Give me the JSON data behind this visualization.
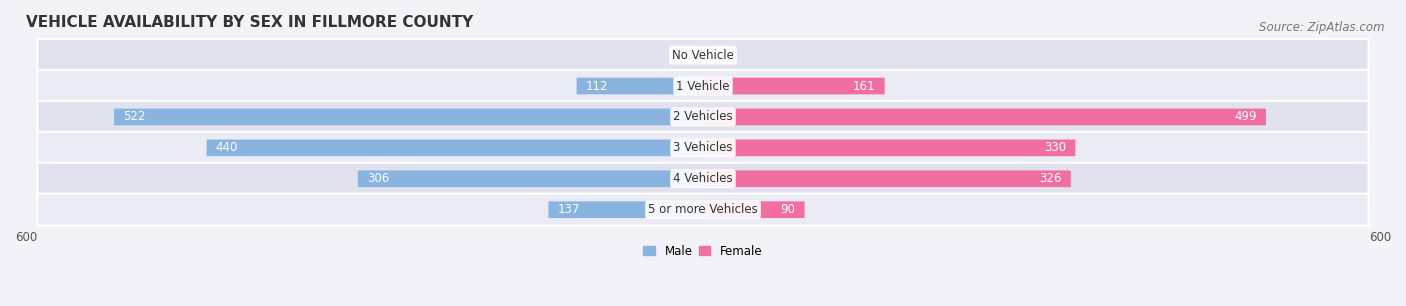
{
  "title": "VEHICLE AVAILABILITY BY SEX IN FILLMORE COUNTY",
  "source": "Source: ZipAtlas.com",
  "categories": [
    "No Vehicle",
    "1 Vehicle",
    "2 Vehicles",
    "3 Vehicles",
    "4 Vehicles",
    "5 or more Vehicles"
  ],
  "male_values": [
    3,
    112,
    522,
    440,
    306,
    137
  ],
  "female_values": [
    3,
    161,
    499,
    330,
    326,
    90
  ],
  "male_color": "#8ab4e0",
  "female_color": "#f06fa0",
  "male_color_light": "#b8d0ec",
  "female_color_light": "#f7a8c8",
  "bar_height": 0.52,
  "xlim": [
    -600,
    600
  ],
  "background_color": "#f2f2f8",
  "row_bg_color_dark": "#e2e2ee",
  "row_bg_color_light": "#ebebf5",
  "title_fontsize": 11,
  "source_fontsize": 8.5,
  "label_fontsize": 8.5,
  "value_fontsize": 8.5,
  "legend_male": "Male",
  "legend_female": "Female",
  "inside_threshold": 50
}
